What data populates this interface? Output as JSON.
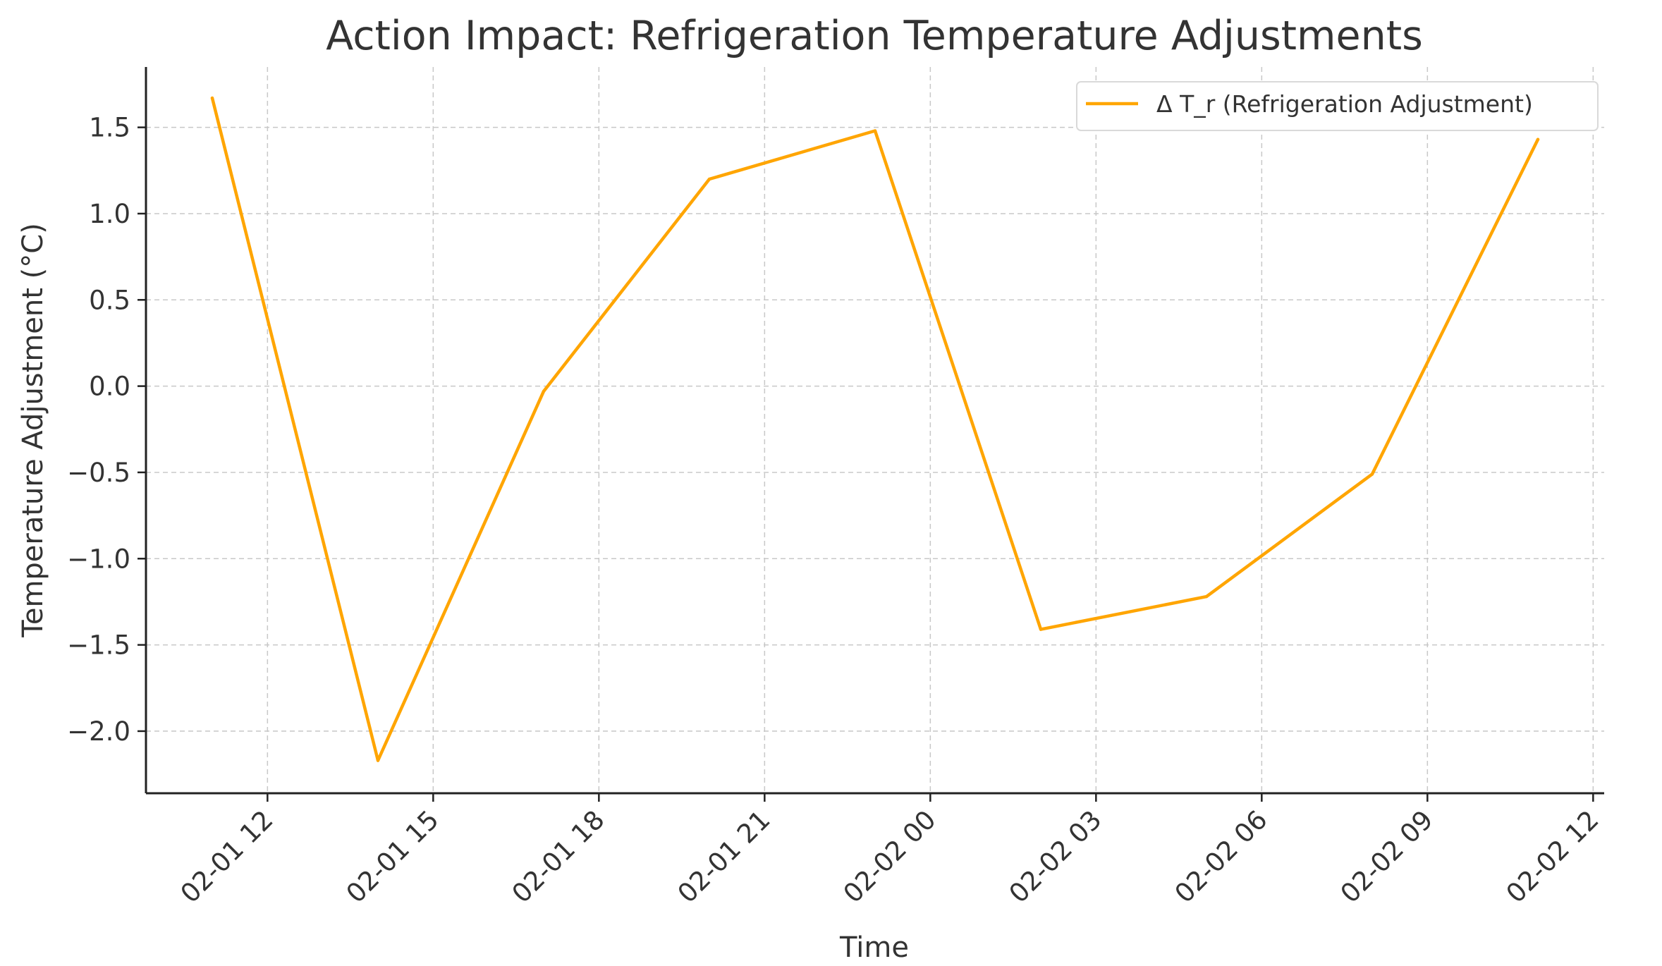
{
  "chart_data": {
    "type": "line",
    "title": "Action Impact: Refrigeration Temperature Adjustments",
    "xlabel": "Time",
    "ylabel": "Temperature Adjustment (°C)",
    "x_ticks": [
      {
        "hour": 12,
        "label": "02-01 12"
      },
      {
        "hour": 15,
        "label": "02-01 15"
      },
      {
        "hour": 18,
        "label": "02-01 18"
      },
      {
        "hour": 21,
        "label": "02-01 21"
      },
      {
        "hour": 24,
        "label": "02-02 00"
      },
      {
        "hour": 27,
        "label": "02-02 03"
      },
      {
        "hour": 30,
        "label": "02-02 06"
      },
      {
        "hour": 33,
        "label": "02-02 09"
      },
      {
        "hour": 36,
        "label": "02-02 12"
      }
    ],
    "y_ticks": [
      {
        "value": 1.5,
        "label": "1.5"
      },
      {
        "value": 1.0,
        "label": "1.0"
      },
      {
        "value": 0.5,
        "label": "0.5"
      },
      {
        "value": 0.0,
        "label": "0.0"
      },
      {
        "value": -0.5,
        "label": "−0.5"
      },
      {
        "value": -1.0,
        "label": "−1.0"
      },
      {
        "value": -1.5,
        "label": "−1.5"
      },
      {
        "value": -2.0,
        "label": "−2.0"
      }
    ],
    "xlim": [
      9.8,
      36.2
    ],
    "ylim": [
      -2.36,
      1.85
    ],
    "grid": true,
    "legend_position": "top-right",
    "series": [
      {
        "name": "Δ T_r (Refrigeration Adjustment)",
        "color": "#FFA500",
        "x_hours": [
          11,
          14,
          17,
          20,
          23,
          26,
          29,
          32,
          35
        ],
        "values": [
          1.67,
          -2.17,
          -0.03,
          1.2,
          1.48,
          -1.41,
          -1.22,
          -0.51,
          1.43
        ]
      }
    ]
  }
}
